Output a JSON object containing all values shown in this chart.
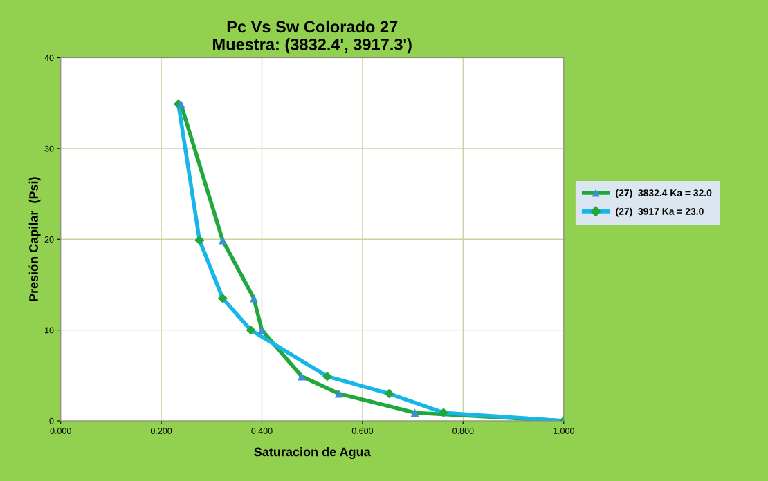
{
  "chart_data": {
    "type": "line",
    "title": "Pc Vs Sw Colorado 27\nMuestra: (3832.4', 3917.3')",
    "xlabel": "Saturacion de Agua",
    "ylabel": "Presión Capilar  (Psi)",
    "series": [
      {
        "name": "(27)  3832.4 Ka = 32.0",
        "color": "#20a83c",
        "marker": "triangle",
        "colors": [
          "#3b8fd6",
          "#3b8fd6",
          "#3b8fd6",
          "#3b8fd6",
          "#3b8fd6",
          "#3b8fd6",
          "#3b8fd6",
          "#3b8fd6"
        ],
        "x": [
          0.239,
          0.322,
          0.384,
          0.4,
          0.479,
          0.553,
          0.704,
          1.0
        ],
        "values": [
          34.9,
          19.9,
          13.5,
          10.0,
          4.9,
          3.0,
          0.9,
          0.0
        ]
      },
      {
        "name": "(27)  3917 Ka = 23.0",
        "color": "#16b6ea",
        "marker": "diamond",
        "colors": [
          "#20a83c",
          "#20a83c",
          "#20a83c",
          "#20a83c",
          "#20a83c",
          "#20a83c",
          "#20a83c",
          "#20a83c"
        ],
        "x": [
          0.234,
          0.276,
          0.322,
          0.378,
          0.53,
          0.653,
          0.761,
          1.0
        ],
        "values": [
          34.9,
          19.9,
          13.5,
          10.0,
          4.9,
          3.0,
          0.9,
          0.0
        ]
      }
    ],
    "xlim": [
      0,
      1.0
    ],
    "ylim": [
      0,
      40
    ],
    "xticks": [
      {
        "value": 0,
        "label": "0.000"
      },
      {
        "value": 0.2,
        "label": "0.200"
      },
      {
        "value": 0.4,
        "label": "0.400"
      },
      {
        "value": 0.6,
        "label": "0.600"
      },
      {
        "value": 0.8,
        "label": "0.800"
      },
      {
        "value": 1.0,
        "label": "1.000"
      }
    ],
    "yticks": [
      0,
      10,
      20,
      30,
      40
    ],
    "grid": true,
    "legend": "right",
    "line_style": "solid"
  }
}
